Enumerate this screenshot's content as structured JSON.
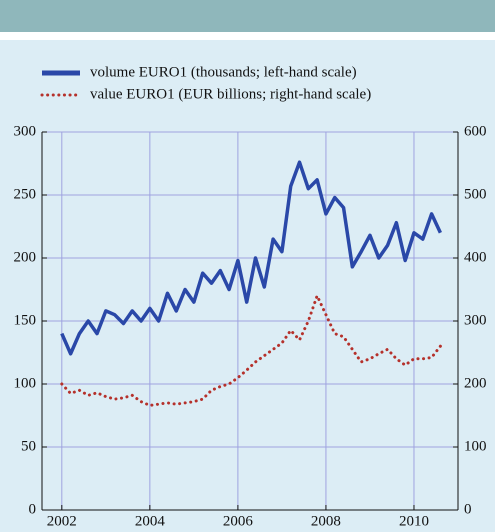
{
  "chart_data": {
    "type": "line",
    "x": [
      2002.0,
      2002.2,
      2002.4,
      2002.6,
      2002.8,
      2003.0,
      2003.2,
      2003.4,
      2003.6,
      2003.8,
      2004.0,
      2004.2,
      2004.4,
      2004.6,
      2004.8,
      2005.0,
      2005.2,
      2005.4,
      2005.6,
      2005.8,
      2006.0,
      2006.2,
      2006.4,
      2006.6,
      2006.8,
      2007.0,
      2007.2,
      2007.4,
      2007.6,
      2007.8,
      2008.0,
      2008.2,
      2008.4,
      2008.6,
      2008.8,
      2009.0,
      2009.2,
      2009.4,
      2009.6,
      2009.8,
      2010.0,
      2010.2,
      2010.4,
      2010.6
    ],
    "series": [
      {
        "name": "volume EURO1 (thousands; left-hand scale)",
        "color": "#2a48a8",
        "style": "solid",
        "values": [
          140,
          124,
          140,
          150,
          140,
          158,
          155,
          148,
          158,
          150,
          160,
          150,
          172,
          158,
          175,
          165,
          188,
          180,
          190,
          175,
          198,
          165,
          200,
          177,
          215,
          205,
          257,
          276,
          255,
          262,
          235,
          248,
          240,
          193,
          205,
          218,
          200,
          210,
          228,
          198,
          220,
          215,
          235,
          220
        ]
      },
      {
        "name": "value EURO1 (EUR billions; right-hand scale)",
        "color": "#b5312b",
        "style": "dotted",
        "axis": "y2",
        "values": [
          200,
          185,
          190,
          182,
          186,
          180,
          176,
          178,
          182,
          172,
          166,
          168,
          170,
          168,
          170,
          172,
          176,
          190,
          196,
          200,
          210,
          222,
          235,
          245,
          255,
          265,
          285,
          270,
          300,
          340,
          310,
          280,
          275,
          255,
          235,
          240,
          248,
          255,
          240,
          230,
          240,
          240,
          242,
          260
        ]
      }
    ],
    "xlim": [
      2001.55,
      2011
    ],
    "xticks": [
      2002,
      2004,
      2006,
      2008,
      2010
    ],
    "ylim": [
      0,
      300
    ],
    "yticks": [
      0,
      50,
      100,
      150,
      200,
      250,
      300
    ],
    "y2lim": [
      0,
      600
    ],
    "y2ticks": [
      0,
      100,
      200,
      300,
      400,
      500,
      600
    ],
    "grid": true
  }
}
